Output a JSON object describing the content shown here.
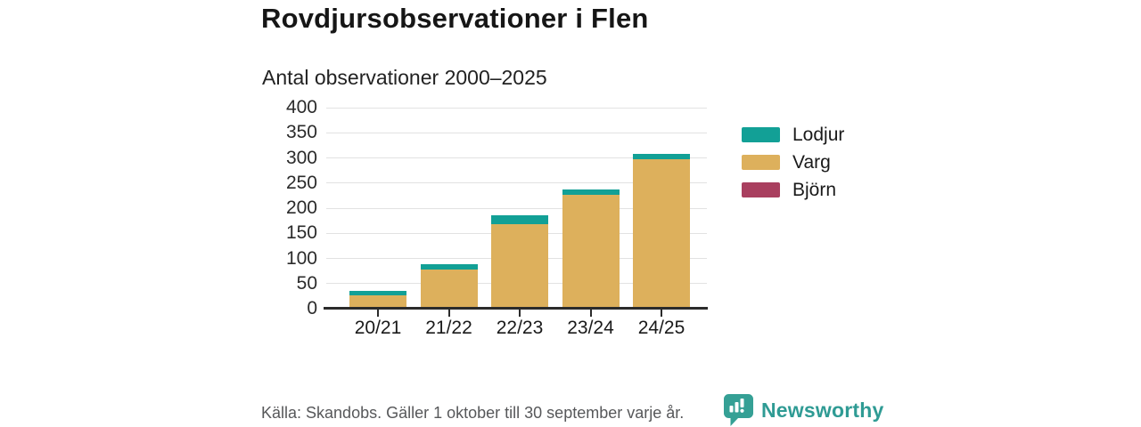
{
  "title": "Rovdjursobservationer i Flen",
  "subtitle": "Antal observationer 2000–2025",
  "source": "Källa: Skandobs. Gäller 1 oktober till 30 september varje år.",
  "brand": {
    "name": "Newsworthy",
    "icon": "newsworthy-chart-bubble-icon",
    "icon_color": "#35a095",
    "text_color": "#2f9b94"
  },
  "colors": {
    "lodjur": "#12a096",
    "varg": "#ddb05c",
    "bjorn": "#a93f5f",
    "axis": "#2b2b2b",
    "grid": "#e2e2e2",
    "text": "#1a1a1a",
    "muted": "#57585a",
    "background": "#ffffff"
  },
  "legend": {
    "position": "right",
    "items": [
      {
        "label": "Lodjur",
        "color": "#12a096"
      },
      {
        "label": "Varg",
        "color": "#ddb05c"
      },
      {
        "label": "Björn",
        "color": "#a93f5f"
      }
    ]
  },
  "chart_data": {
    "type": "bar",
    "stacked": true,
    "title": "Rovdjursobservationer i Flen",
    "subtitle": "Antal observationer 2000–2025",
    "xlabel": "",
    "ylabel": "",
    "categories": [
      "20/21",
      "21/22",
      "22/23",
      "23/24",
      "24/25"
    ],
    "series": [
      {
        "name": "Lodjur",
        "color": "#12a096",
        "values": [
          8,
          10,
          18,
          12,
          10
        ]
      },
      {
        "name": "Varg",
        "color": "#ddb05c",
        "values": [
          27,
          78,
          168,
          226,
          298
        ]
      },
      {
        "name": "Björn",
        "color": "#a93f5f",
        "values": [
          0,
          0,
          0,
          0,
          0
        ]
      }
    ],
    "totals": [
      35,
      88,
      186,
      238,
      308
    ],
    "stack_order_bottom_to_top": [
      "Björn",
      "Varg",
      "Lodjur"
    ],
    "ylim": [
      0,
      400
    ],
    "yticks": [
      0,
      50,
      100,
      150,
      200,
      250,
      300,
      350,
      400
    ],
    "grid": true,
    "legend_position": "right"
  }
}
